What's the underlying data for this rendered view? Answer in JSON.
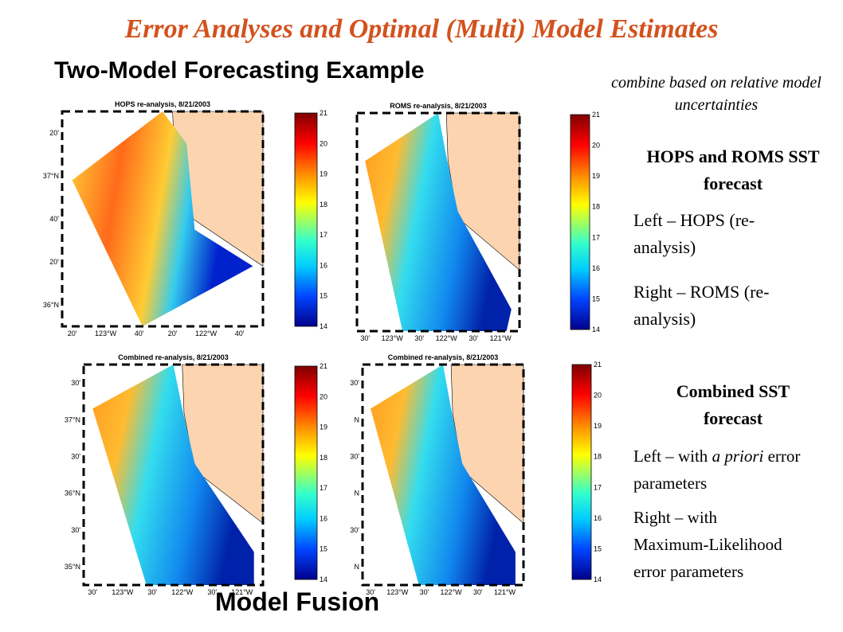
{
  "title": "Error Analyses and Optimal (Multi) Model Estimates",
  "subtitle": "Two-Model Forecasting Example",
  "fusion_label": "Model Fusion",
  "note": "combine based on relative model uncertainties",
  "section1": {
    "heading": "HOPS and ROMS SST forecast",
    "items": [
      "Left – HOPS (re-analysis)",
      "Right – ROMS (re-analysis)"
    ]
  },
  "section2": {
    "heading": "Combined SST forecast",
    "items": [
      {
        "before": "Left – with ",
        "emph": "a priori",
        "after": " error parameters"
      },
      "Right – with Maximum-Likelihood error parameters"
    ]
  },
  "colorbar_ticks": [
    21,
    20,
    19,
    18,
    17,
    16,
    15,
    14
  ],
  "panels": [
    {
      "title": "HOPS re-analysis, 8/21/2003",
      "ylabels": [
        "20'",
        "37°N",
        "40'",
        "20'",
        "36°N"
      ],
      "xlabels": [
        "20'",
        "123°W",
        "40'",
        "20'",
        "122°W",
        "40'"
      ]
    },
    {
      "title": "ROMS re-analysis, 8/21/2003",
      "ylabels": [],
      "xlabels": [
        "30'",
        "123°W",
        "30'",
        "122°W",
        "30'",
        "121°W"
      ]
    },
    {
      "title": "Combined re-analysis, 8/21/2003",
      "ylabels": [
        "30'",
        "37°N",
        "30'",
        "36°N",
        "30'",
        "35°N"
      ],
      "xlabels": [
        "30'",
        "123°W",
        "30'",
        "122°W",
        "30'",
        "121°W"
      ]
    },
    {
      "title": "Combined re-analysis, 8/21/2003",
      "ylabels": [
        "30'",
        "N",
        "30'",
        "N",
        "30'",
        "N"
      ],
      "xlabels": [
        "30'",
        "123°W",
        "30'",
        "122°W",
        "30'",
        "121°W"
      ]
    }
  ]
}
